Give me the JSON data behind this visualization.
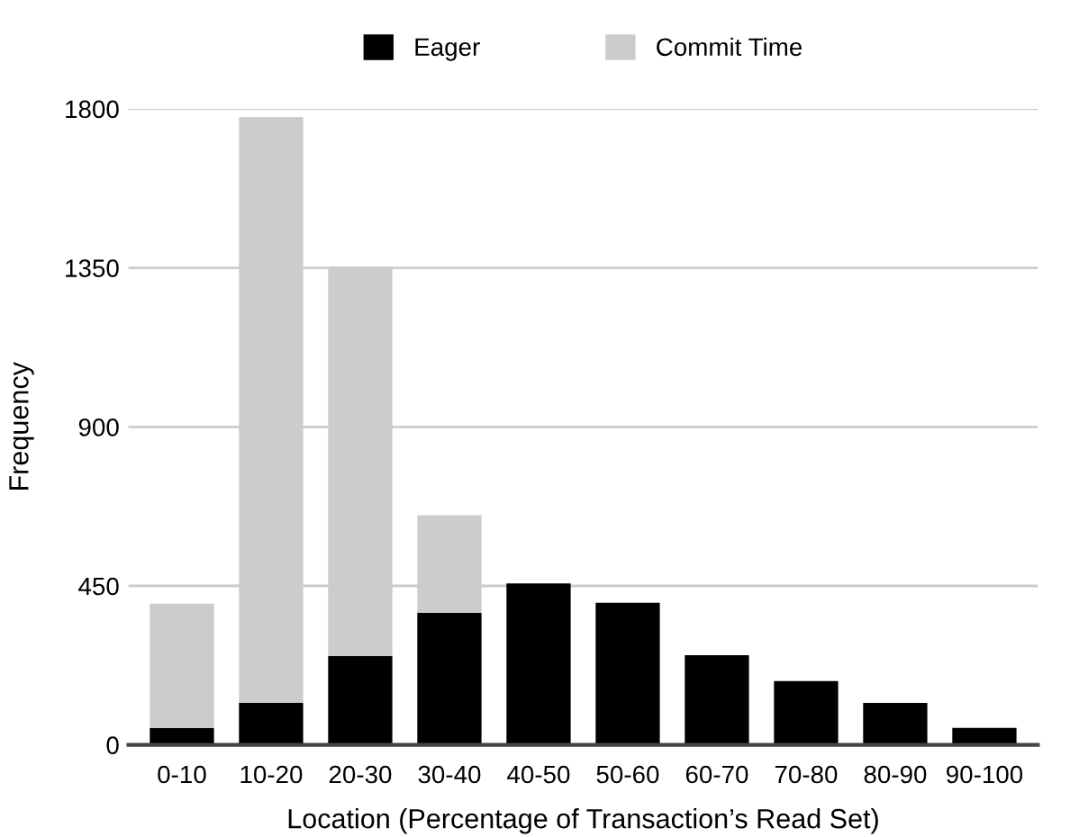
{
  "chart_data": {
    "type": "bar",
    "stacked": true,
    "xlabel": "Location (Percentage of Transaction’s Read Set)",
    "ylabel": "Frequency",
    "categories": [
      "0-10",
      "10-20",
      "20-30",
      "30-40",
      "40-50",
      "50-60",
      "60-70",
      "70-80",
      "80-90",
      "90-100"
    ],
    "series": [
      {
        "name": "Eager",
        "color": "#000000",
        "values": [
          48,
          119,
          252,
          374,
          457,
          402,
          254,
          181,
          119,
          48
        ]
      },
      {
        "name": "Commit Time",
        "color": "#cccccc",
        "values": [
          352,
          1658,
          1100,
          276,
          0,
          0,
          0,
          0,
          0,
          0
        ]
      }
    ],
    "ylim": [
      0,
      1800
    ],
    "yticks": [
      0,
      450,
      900,
      1350,
      1800
    ],
    "grid": "y",
    "legend": "top"
  }
}
